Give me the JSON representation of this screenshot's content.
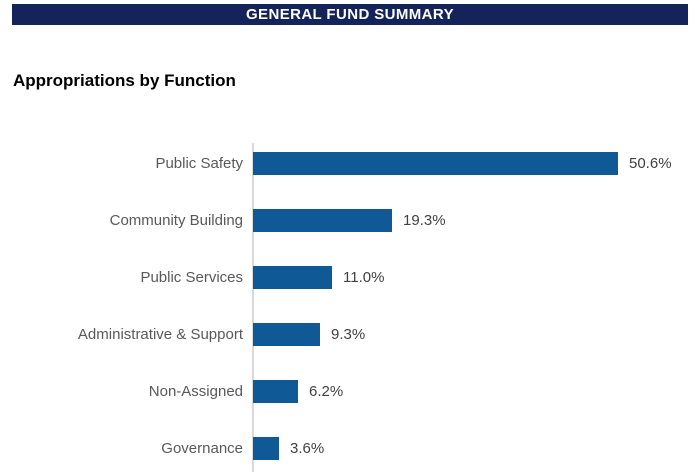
{
  "banner": {
    "title": "GENERAL FUND SUMMARY"
  },
  "section": {
    "title": "Appropriations by Function"
  },
  "chart_data": {
    "type": "bar",
    "orientation": "horizontal",
    "title": "Appropriations by Function",
    "categories": [
      "Public Safety",
      "Community Building",
      "Public Services",
      "Administrative & Support",
      "Non-Assigned",
      "Governance"
    ],
    "values": [
      50.6,
      19.3,
      11.0,
      9.3,
      6.2,
      3.6
    ],
    "value_labels": [
      "50.6%",
      "19.3%",
      "11.0%",
      "9.3%",
      "6.2%",
      "3.6%"
    ],
    "unit": "percent",
    "xlim": [
      0,
      55
    ],
    "grid": false,
    "legend": false,
    "sorted": "descending",
    "colors": {
      "bar": "#0F5996",
      "category_label": "#595959",
      "value_label": "#404040",
      "axis_line": "#D9D9D9",
      "banner_background": "#14235A",
      "banner_text": "#FFFFFF"
    }
  }
}
